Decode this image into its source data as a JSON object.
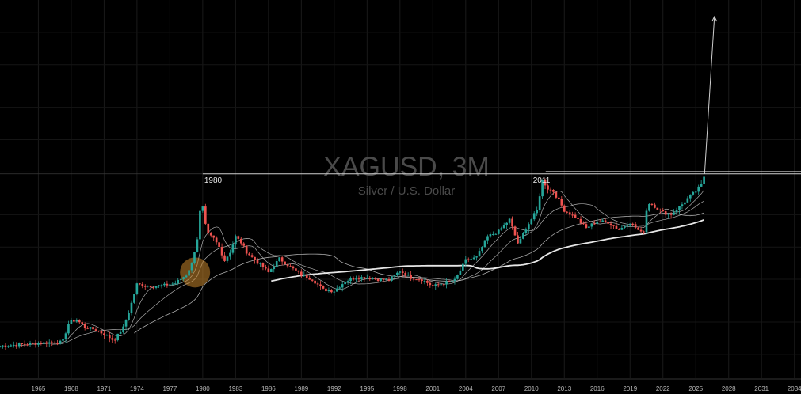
{
  "chart_data": {
    "type": "candlestick",
    "title": "XAGUSD, 3M",
    "subtitle": "Silver / U.S. Dollar",
    "xlabel": "",
    "ylabel": "",
    "y_scale": "log",
    "xlim": [
      1961.5,
      2034.6
    ],
    "ylim": [
      0.6,
      2000
    ],
    "x_ticks": [
      "1965",
      "1968",
      "1971",
      "1974",
      "1977",
      "1980",
      "1983",
      "1986",
      "1989",
      "1992",
      "1995",
      "1998",
      "2001",
      "2004",
      "2007",
      "2010",
      "2013",
      "2016",
      "2019",
      "2022",
      "2025",
      "2028",
      "2031",
      "2034"
    ],
    "colors": {
      "up": "#26a69a",
      "down": "#ef5350",
      "ma": "#bdbdbd",
      "ma_long": "#ffffff",
      "highlight": "#c8872c"
    },
    "annotations": [
      {
        "text": "1980",
        "x": 1980.0,
        "y": 48
      },
      {
        "text": "2011",
        "x": 2011.3,
        "y": 48
      }
    ],
    "resistance_level": 48,
    "projection": {
      "from": [
        2025.8,
        48
      ],
      "to": [
        2026.7,
        1400
      ]
    },
    "candle_anchors": [
      [
        1961.5,
        1.2
      ],
      [
        1966.0,
        1.29
      ],
      [
        1967.2,
        1.3
      ],
      [
        1967.8,
        2.0
      ],
      [
        1968.5,
        2.1
      ],
      [
        1969.2,
        1.8
      ],
      [
        1970.2,
        1.7
      ],
      [
        1971.2,
        1.5
      ],
      [
        1971.9,
        1.35
      ],
      [
        1972.8,
        1.8
      ],
      [
        1973.5,
        3.0
      ],
      [
        1974.0,
        4.5
      ],
      [
        1974.8,
        4.4
      ],
      [
        1975.5,
        4.3
      ],
      [
        1976.5,
        4.4
      ],
      [
        1977.5,
        4.6
      ],
      [
        1978.5,
        5.5
      ],
      [
        1979.0,
        7.0
      ],
      [
        1979.5,
        12.0
      ],
      [
        1979.9,
        30.0
      ],
      [
        1980.1,
        18.0
      ],
      [
        1980.5,
        13.0
      ],
      [
        1981.0,
        12.0
      ],
      [
        1981.5,
        10.0
      ],
      [
        1982.0,
        7.5
      ],
      [
        1982.5,
        9.0
      ],
      [
        1983.0,
        12.5
      ],
      [
        1983.5,
        11.0
      ],
      [
        1984.0,
        9.0
      ],
      [
        1984.8,
        7.5
      ],
      [
        1985.5,
        6.5
      ],
      [
        1986.0,
        5.8
      ],
      [
        1987.0,
        7.8
      ],
      [
        1988.0,
        6.5
      ],
      [
        1989.0,
        5.5
      ],
      [
        1990.0,
        5.0
      ],
      [
        1991.0,
        4.0
      ],
      [
        1992.0,
        3.9
      ],
      [
        1993.0,
        4.8
      ],
      [
        1994.0,
        5.2
      ],
      [
        1995.0,
        5.2
      ],
      [
        1996.0,
        5.0
      ],
      [
        1997.0,
        4.9
      ],
      [
        1998.0,
        6.0
      ],
      [
        1999.0,
        5.2
      ],
      [
        2000.0,
        5.0
      ],
      [
        2001.0,
        4.3
      ],
      [
        2002.0,
        4.6
      ],
      [
        2003.0,
        4.9
      ],
      [
        2004.0,
        7.5
      ],
      [
        2005.0,
        8.0
      ],
      [
        2006.0,
        12.5
      ],
      [
        2007.0,
        14.0
      ],
      [
        2008.0,
        18.0
      ],
      [
        2008.8,
        10.5
      ],
      [
        2009.5,
        15.0
      ],
      [
        2010.5,
        22.0
      ],
      [
        2011.0,
        42.0
      ],
      [
        2011.5,
        35.0
      ],
      [
        2012.0,
        33.0
      ],
      [
        2013.0,
        22.0
      ],
      [
        2014.0,
        19.0
      ],
      [
        2015.0,
        15.0
      ],
      [
        2016.0,
        17.5
      ],
      [
        2017.0,
        17.0
      ],
      [
        2018.0,
        14.5
      ],
      [
        2019.0,
        17.0
      ],
      [
        2020.2,
        13.0
      ],
      [
        2020.6,
        26.0
      ],
      [
        2021.0,
        25.0
      ],
      [
        2022.0,
        21.0
      ],
      [
        2022.7,
        20.0
      ],
      [
        2023.5,
        23.5
      ],
      [
        2024.5,
        30.0
      ],
      [
        2025.0,
        33.0
      ],
      [
        2025.5,
        38.0
      ],
      [
        2025.8,
        47.0
      ]
    ]
  }
}
